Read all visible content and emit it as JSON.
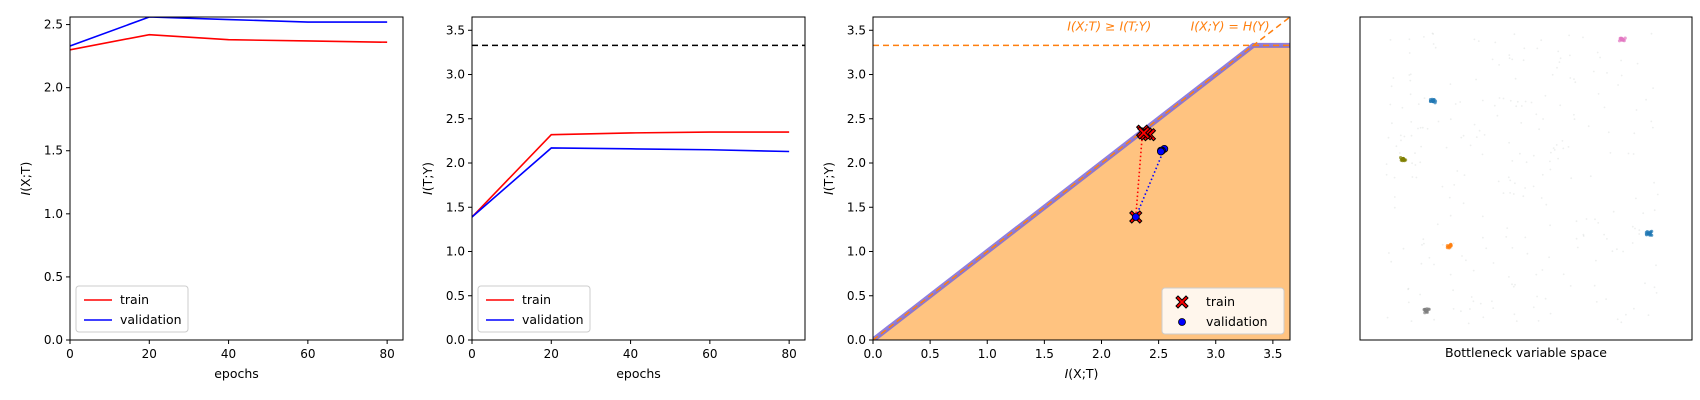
{
  "chart_data": [
    {
      "type": "line",
      "xlabel": "epochs",
      "ylabel": "I(X;T)",
      "xlim": [
        0,
        84
      ],
      "ylim": [
        0.0,
        2.56
      ],
      "xticks": [
        "0",
        "20",
        "40",
        "60",
        "80"
      ],
      "yticks": [
        "0.0",
        "0.5",
        "1.0",
        "1.5",
        "2.0",
        "2.5"
      ],
      "x": [
        0,
        20,
        40,
        60,
        80
      ],
      "series": [
        {
          "name": "train",
          "color": "#ff0000",
          "values": [
            2.3,
            2.42,
            2.38,
            2.37,
            2.36
          ]
        },
        {
          "name": "validation",
          "color": "#0000ff",
          "values": [
            2.33,
            2.56,
            2.54,
            2.52,
            2.52
          ]
        }
      ],
      "legend": "lower-left",
      "grid": false
    },
    {
      "type": "line",
      "xlabel": "epochs",
      "ylabel": "I(T;Y)",
      "xlim": [
        0,
        84
      ],
      "ylim": [
        0.0,
        3.65
      ],
      "xticks": [
        "0",
        "20",
        "40",
        "60",
        "80"
      ],
      "yticks": [
        "0.0",
        "0.5",
        "1.0",
        "1.5",
        "2.0",
        "2.5",
        "3.0",
        "3.5"
      ],
      "x": [
        0,
        20,
        40,
        60,
        80
      ],
      "series": [
        {
          "name": "train",
          "color": "#ff0000",
          "values": [
            1.39,
            2.32,
            2.34,
            2.35,
            2.35
          ]
        },
        {
          "name": "validation",
          "color": "#0000ff",
          "values": [
            1.39,
            2.17,
            2.16,
            2.15,
            2.13
          ]
        }
      ],
      "reference_line": {
        "y": 3.33,
        "style": "dashed",
        "color": "#000000"
      },
      "legend": "lower-left",
      "grid": false
    },
    {
      "type": "scatter",
      "xlabel": "I(X;T)",
      "ylabel": "I(T;Y)",
      "xlim": [
        0.0,
        3.65
      ],
      "ylim": [
        0.0,
        3.65
      ],
      "xticks": [
        "0.0",
        "0.5",
        "1.0",
        "1.5",
        "2.0",
        "2.5",
        "3.0",
        "3.5"
      ],
      "yticks": [
        "0.0",
        "0.5",
        "1.0",
        "1.5",
        "2.0",
        "2.5",
        "3.0",
        "3.5"
      ],
      "HY": 3.33,
      "annotations": [
        "I(X;T) ≥ I(T;Y)",
        "I(X;Y) = H(Y)"
      ],
      "fill_color": "#ffc380",
      "bound_color": "#7b68d9",
      "series": [
        {
          "name": "train",
          "color": "#ff0000",
          "marker": "X",
          "points": [
            [
              2.3,
              1.39
            ],
            [
              2.36,
              2.36
            ],
            [
              2.42,
              2.32
            ],
            [
              2.39,
              2.33
            ],
            [
              2.37,
              2.34
            ]
          ]
        },
        {
          "name": "validation",
          "color": "#0000ff",
          "marker": "o",
          "points": [
            [
              2.3,
              1.39
            ],
            [
              2.55,
              2.16
            ],
            [
              2.53,
              2.14
            ],
            [
              2.52,
              2.14
            ],
            [
              2.52,
              2.13
            ]
          ]
        }
      ],
      "legend": "lower-right",
      "grid": false
    },
    {
      "type": "scatter",
      "xlabel": "Bottleneck variable space",
      "clusters": [
        {
          "color": "#e377c2",
          "x": 0.79,
          "y": 0.93
        },
        {
          "color": "#1f77b4",
          "x": 0.22,
          "y": 0.74
        },
        {
          "color": "#7f7f00",
          "x": 0.13,
          "y": 0.56
        },
        {
          "color": "#1f77b4",
          "x": 0.87,
          "y": 0.33
        },
        {
          "color": "#ff7f0e",
          "x": 0.27,
          "y": 0.29
        },
        {
          "color": "#7f7f7f",
          "x": 0.2,
          "y": 0.09
        }
      ],
      "axes_visible": false
    }
  ]
}
